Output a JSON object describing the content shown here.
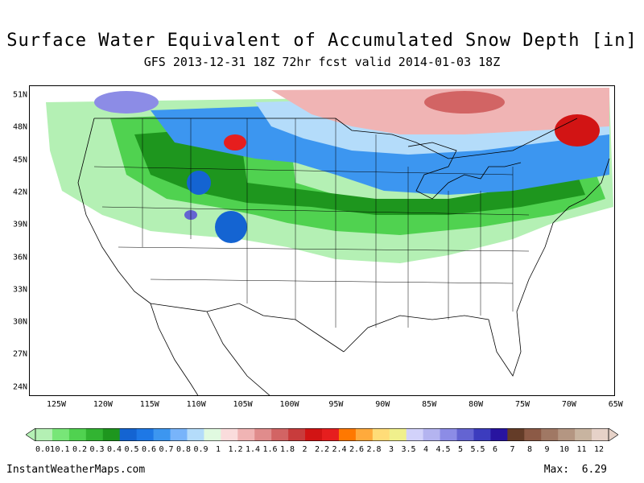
{
  "title": "Surface Water Equivalent of Accumulated Snow Depth [in]",
  "subtitle": "GFS 2013-12-31 18Z 72hr fcst valid 2014-01-03 18Z",
  "lat_labels": [
    "51N",
    "48N",
    "45N",
    "42N",
    "39N",
    "36N",
    "33N",
    "30N",
    "27N",
    "24N"
  ],
  "lon_labels": [
    "125W",
    "120W",
    "115W",
    "110W",
    "105W",
    "100W",
    "95W",
    "90W",
    "85W",
    "80W",
    "75W",
    "70W",
    "65W"
  ],
  "legend": {
    "labels": [
      "0.01",
      "0.1",
      "0.2",
      "0.3",
      "0.4",
      "0.5",
      "0.6",
      "0.7",
      "0.8",
      "0.9",
      "1",
      "1.2",
      "1.4",
      "1.6",
      "1.8",
      "2",
      "2.2",
      "2.4",
      "2.6",
      "2.8",
      "3",
      "3.5",
      "4",
      "4.5",
      "5",
      "5.5",
      "6",
      "7",
      "8",
      "9",
      "10",
      "11",
      "12"
    ],
    "colors": [
      "#b4f0b4",
      "#78e678",
      "#50d250",
      "#32b432",
      "#1e961e",
      "#1464d2",
      "#1e78e6",
      "#3c96f0",
      "#78b4fa",
      "#b4dcfa",
      "#e0fae0",
      "#fadcdc",
      "#f0b4b4",
      "#e08c8c",
      "#d26464",
      "#c83c3c",
      "#d21414",
      "#e61e1e",
      "#ff7800",
      "#ffaa3c",
      "#ffdc78",
      "#f0f08c",
      "#d2d2fa",
      "#b4b4f0",
      "#8c8ce6",
      "#6464d2",
      "#3c3cbe",
      "#2814a0",
      "#643c28",
      "#8c5a46",
      "#a07864",
      "#b49682",
      "#c8b4a0",
      "#e6d2c8"
    ]
  },
  "site_credit": "InstantWeatherMaps.com",
  "max_label": "Max:",
  "max_value": "6.29",
  "colors": {
    "land_outline": "#000000",
    "background": "#ffffff"
  }
}
